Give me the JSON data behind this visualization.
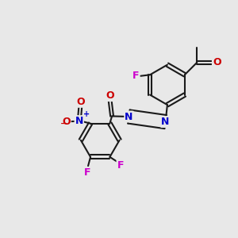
{
  "background_color": "#e8e8e8",
  "bond_color": "#1a1a1a",
  "N_color": "#0000cc",
  "O_color": "#cc0000",
  "F_color": "#cc00cc",
  "figsize": [
    3.0,
    3.0
  ],
  "dpi": 100,
  "xlim": [
    0,
    10
  ],
  "ylim": [
    0,
    10
  ]
}
